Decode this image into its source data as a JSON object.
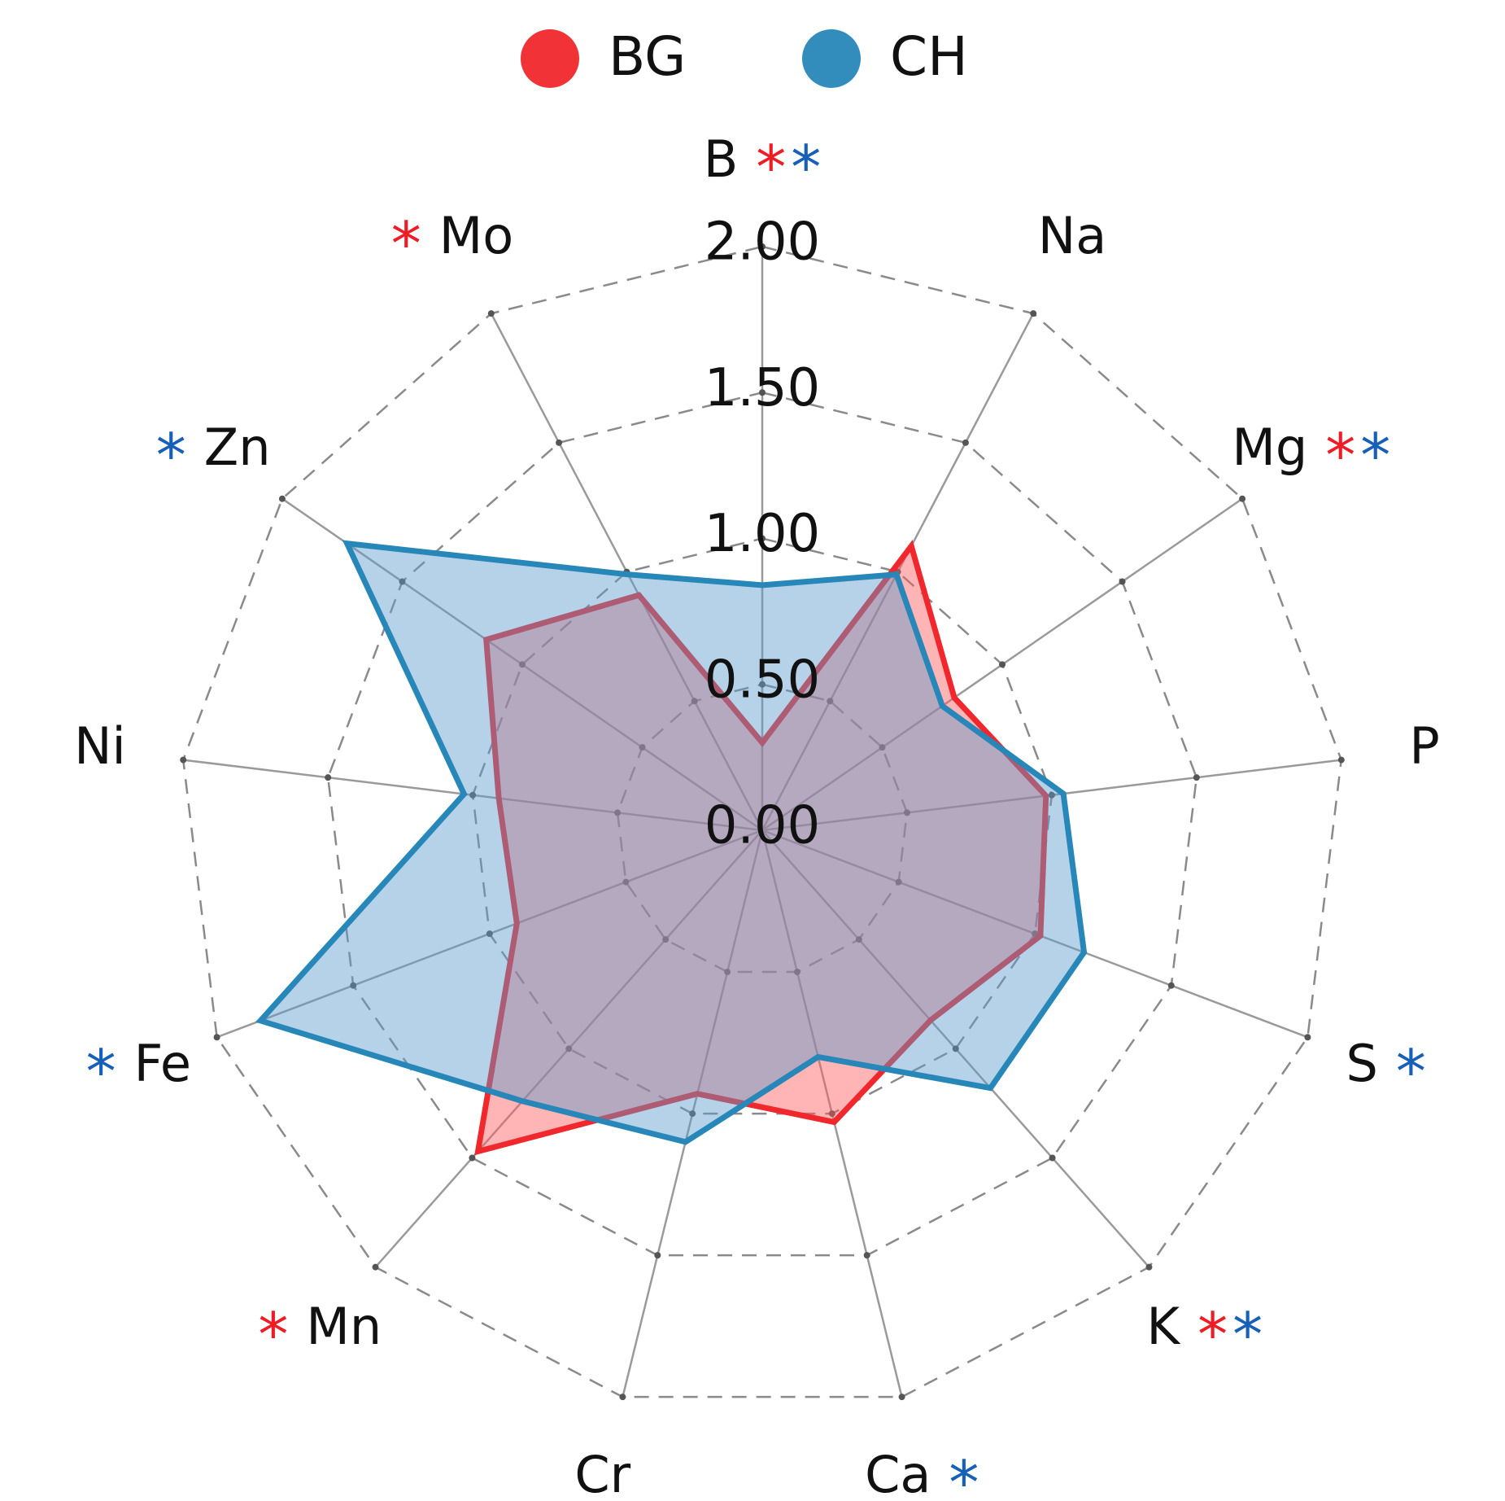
{
  "chart_data": {
    "type": "radar",
    "categories": [
      "B",
      "Na",
      "Mg",
      "P",
      "S",
      "K",
      "Ca",
      "Cr",
      "Mn",
      "Fe",
      "Ni",
      "Zn",
      "Mo"
    ],
    "series": [
      {
        "name": "BG",
        "color": "#f0282d",
        "fill": "rgba(255,90,90,0.45)",
        "significance_color": "#ee1c24",
        "values": [
          0.3,
          1.1,
          0.8,
          0.98,
          1.02,
          0.87,
          1.03,
          0.93,
          1.47,
          0.9,
          0.91,
          1.15,
          0.91
        ],
        "significance": [
          "*",
          null,
          "*",
          null,
          null,
          "*",
          null,
          null,
          "*",
          null,
          null,
          null,
          "*"
        ]
      },
      {
        "name": "CH",
        "color": "#2787b8",
        "fill": "rgba(90,155,205,0.45)",
        "significance_color": "#1660b8",
        "values": [
          0.84,
          0.99,
          0.75,
          1.04,
          1.18,
          1.18,
          0.8,
          1.1,
          1.24,
          1.84,
          1.03,
          1.73,
          0.99
        ],
        "significance": [
          "*",
          null,
          "*",
          null,
          "*",
          "*",
          "*",
          null,
          null,
          "*",
          null,
          "*",
          null
        ]
      }
    ],
    "rlim": [
      0,
      2
    ],
    "rticks": [
      {
        "value": 0,
        "label": "0.00"
      },
      {
        "value": 0.5,
        "label": "0.50"
      },
      {
        "value": 1,
        "label": "1.00"
      },
      {
        "value": 1.5,
        "label": "1.50"
      },
      {
        "value": 2,
        "label": "2.00"
      }
    ],
    "grid": true,
    "legend": "top"
  }
}
